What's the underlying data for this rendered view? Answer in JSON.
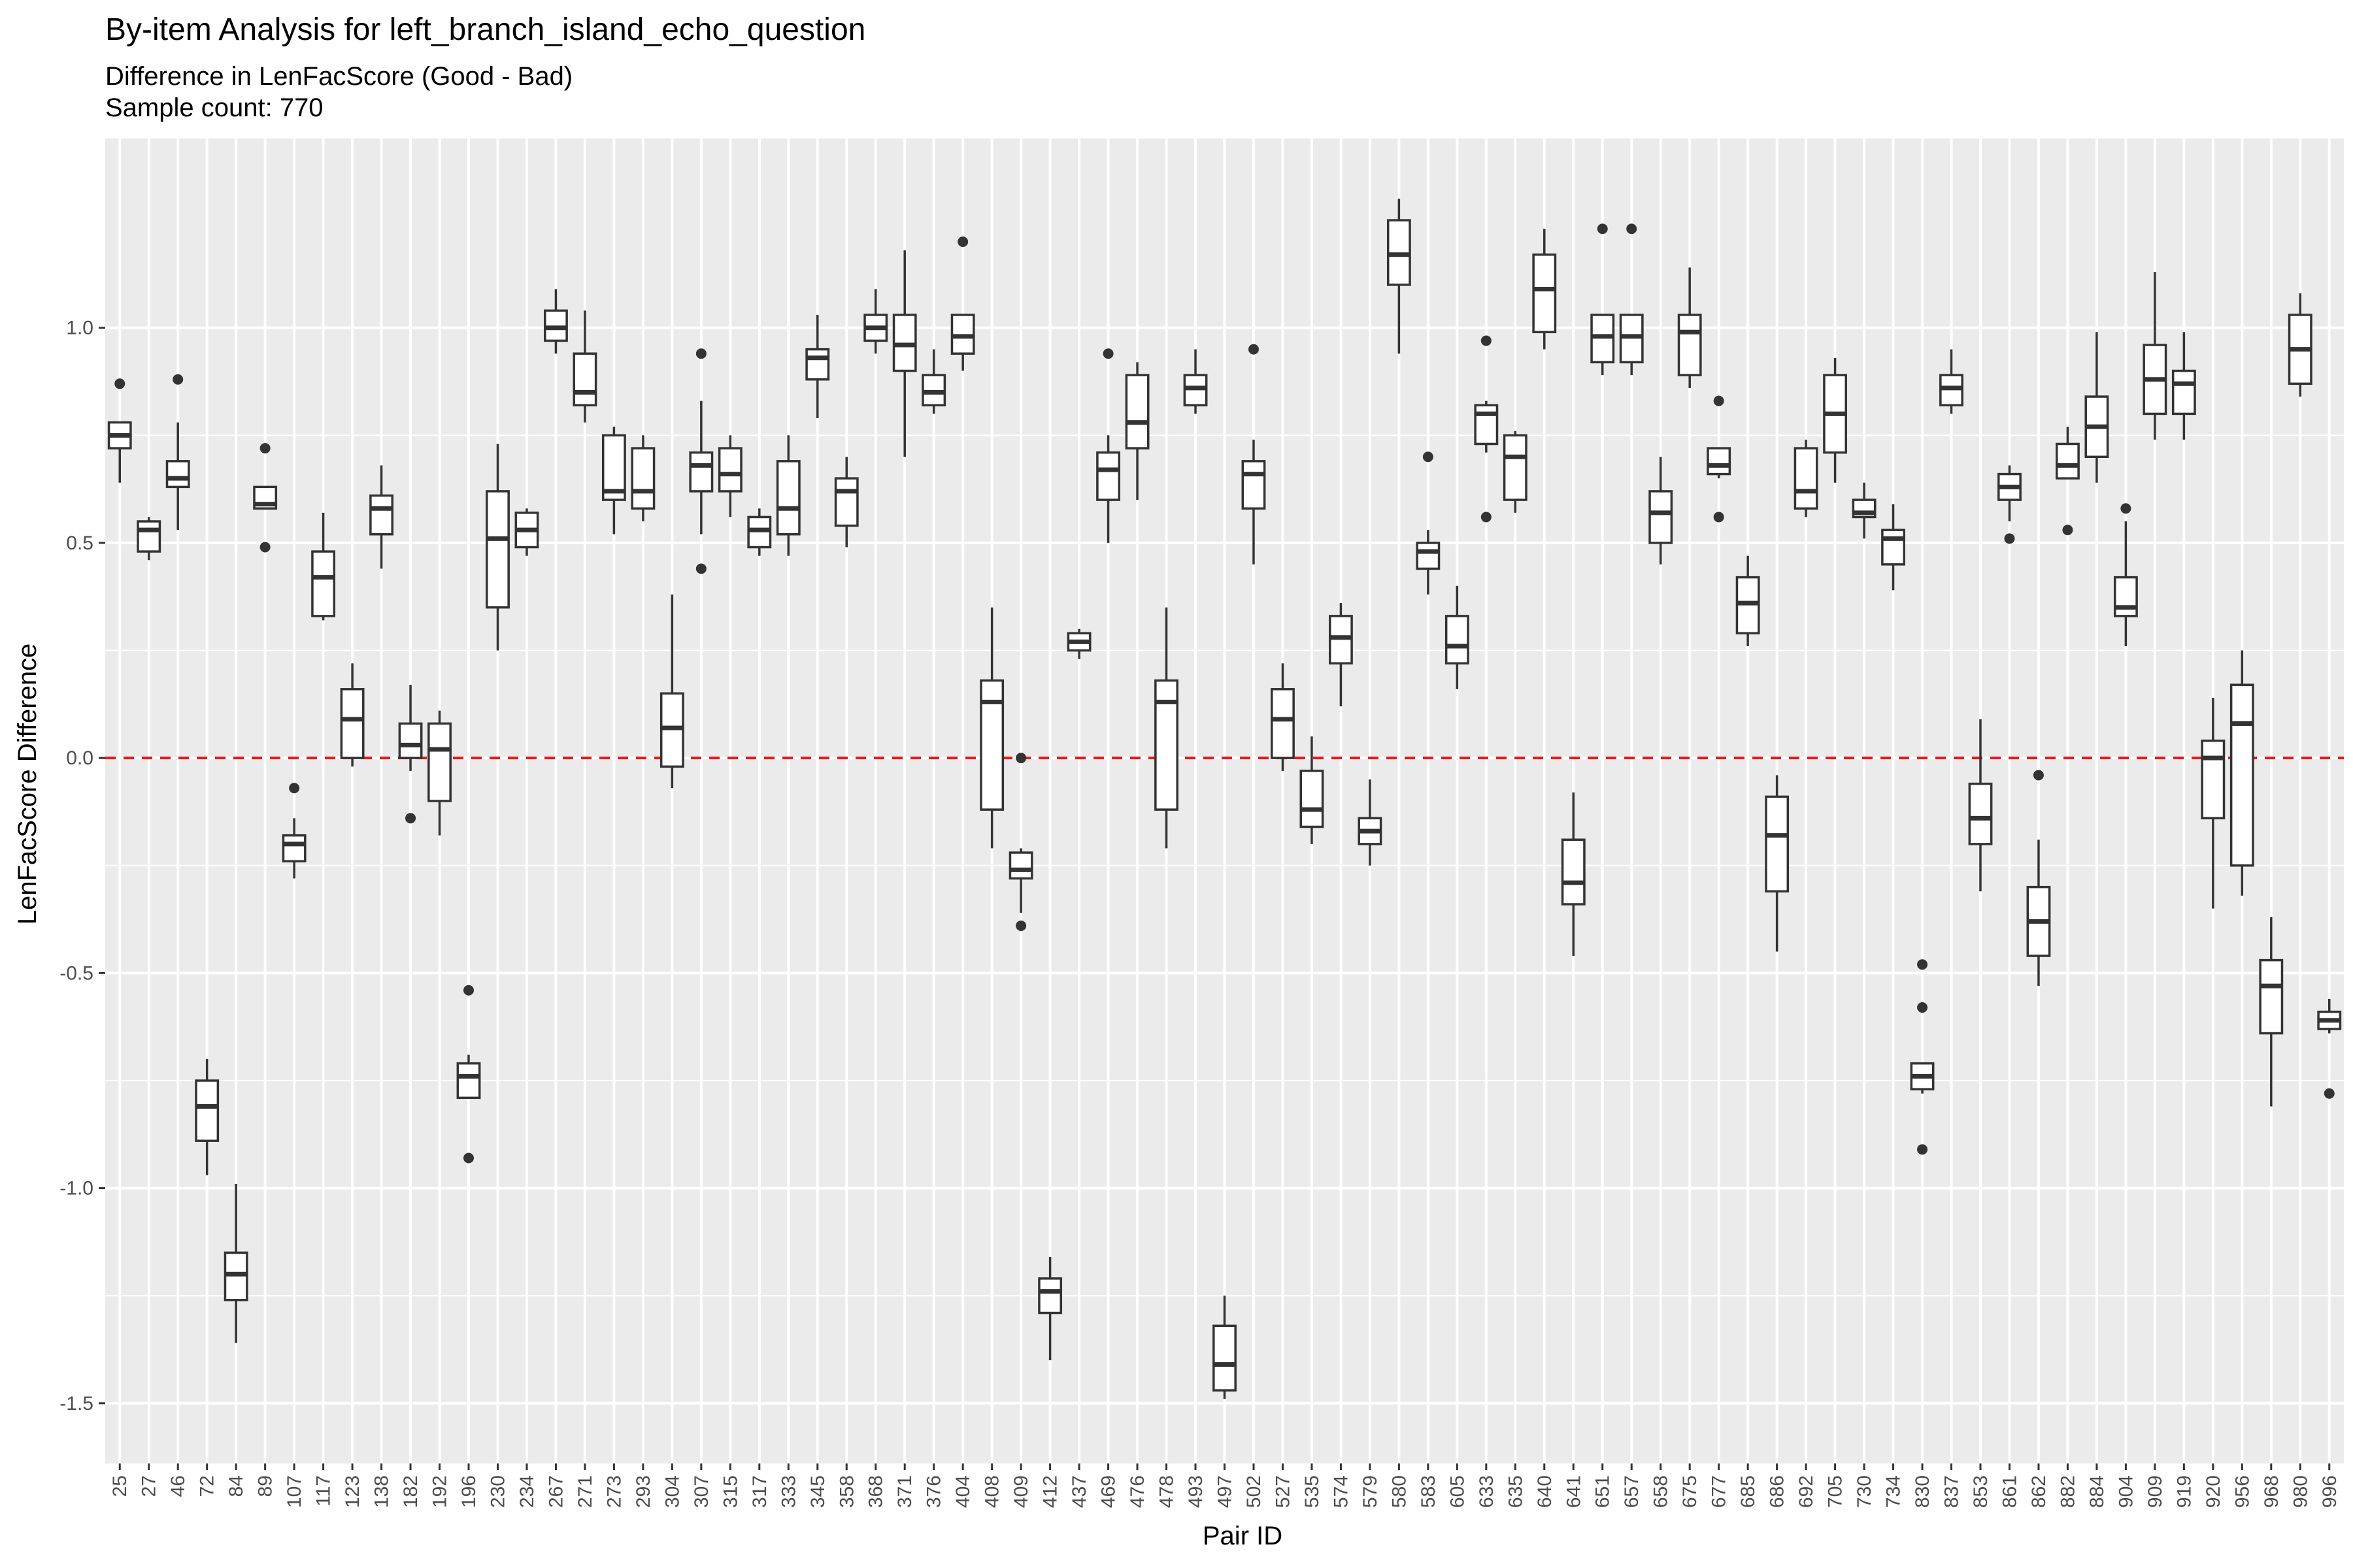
{
  "chart_data": {
    "type": "boxplot",
    "title": "By-item Analysis for left_branch_island_echo_question",
    "subtitle_lines": [
      "Difference in LenFacScore (Good - Bad)",
      "Sample count: 770"
    ],
    "xlabel": "Pair ID",
    "ylabel": "LenFacScore Difference",
    "ylim": [
      -1.64,
      1.44
    ],
    "yticks": [
      -1.5,
      -1.0,
      -0.5,
      0.0,
      0.5,
      1.0
    ],
    "ytick_labels": [
      "-1.5",
      "-1.0",
      "-0.5",
      "0.0",
      "0.5",
      "1.0"
    ],
    "reference_line": {
      "y": 0,
      "color": "#e41a1c",
      "style": "dashed"
    },
    "grid": true,
    "panel_color": "#ebebeb",
    "box_outline_color": "#333333",
    "categories": [
      "25",
      "27",
      "46",
      "72",
      "84",
      "89",
      "107",
      "117",
      "123",
      "138",
      "182",
      "192",
      "196",
      "230",
      "234",
      "267",
      "271",
      "273",
      "293",
      "304",
      "307",
      "315",
      "317",
      "333",
      "345",
      "358",
      "368",
      "371",
      "376",
      "404",
      "408",
      "409",
      "412",
      "437",
      "469",
      "476",
      "478",
      "493",
      "497",
      "502",
      "527",
      "535",
      "574",
      "579",
      "580",
      "583",
      "605",
      "633",
      "635",
      "640",
      "641",
      "651",
      "657",
      "658",
      "675",
      "677",
      "685",
      "686",
      "692",
      "705",
      "730",
      "734",
      "830",
      "837",
      "853",
      "861",
      "862",
      "882",
      "884",
      "904",
      "909",
      "919",
      "920",
      "956",
      "968",
      "980",
      "996"
    ],
    "boxes": [
      {
        "wl": 0.64,
        "q1": 0.72,
        "med": 0.75,
        "q3": 0.78,
        "wh": 0.78,
        "out": [
          0.87
        ]
      },
      {
        "wl": 0.46,
        "q1": 0.48,
        "med": 0.53,
        "q3": 0.55,
        "wh": 0.56,
        "out": []
      },
      {
        "wl": 0.53,
        "q1": 0.63,
        "med": 0.65,
        "q3": 0.69,
        "wh": 0.78,
        "out": [
          0.88
        ]
      },
      {
        "wl": -0.97,
        "q1": -0.89,
        "med": -0.81,
        "q3": -0.75,
        "wh": -0.7,
        "out": []
      },
      {
        "wl": -1.36,
        "q1": -1.26,
        "med": -1.2,
        "q3": -1.15,
        "wh": -0.99,
        "out": []
      },
      {
        "wl": 0.58,
        "q1": 0.58,
        "med": 0.59,
        "q3": 0.63,
        "wh": 0.63,
        "out": [
          0.72,
          0.49
        ]
      },
      {
        "wl": -0.28,
        "q1": -0.24,
        "med": -0.2,
        "q3": -0.18,
        "wh": -0.14,
        "out": [
          -0.07
        ]
      },
      {
        "wl": 0.32,
        "q1": 0.33,
        "med": 0.42,
        "q3": 0.48,
        "wh": 0.57,
        "out": []
      },
      {
        "wl": -0.02,
        "q1": 0.0,
        "med": 0.09,
        "q3": 0.16,
        "wh": 0.22,
        "out": []
      },
      {
        "wl": 0.44,
        "q1": 0.52,
        "med": 0.58,
        "q3": 0.61,
        "wh": 0.68,
        "out": []
      },
      {
        "wl": -0.03,
        "q1": 0.0,
        "med": 0.03,
        "q3": 0.08,
        "wh": 0.17,
        "out": [
          -0.14
        ]
      },
      {
        "wl": -0.18,
        "q1": -0.1,
        "med": 0.02,
        "q3": 0.08,
        "wh": 0.11,
        "out": []
      },
      {
        "wl": -0.79,
        "q1": -0.79,
        "med": -0.74,
        "q3": -0.71,
        "wh": -0.69,
        "out": [
          -0.54,
          -0.93
        ]
      },
      {
        "wl": 0.25,
        "q1": 0.35,
        "med": 0.51,
        "q3": 0.62,
        "wh": 0.73,
        "out": []
      },
      {
        "wl": 0.47,
        "q1": 0.49,
        "med": 0.53,
        "q3": 0.57,
        "wh": 0.58,
        "out": []
      },
      {
        "wl": 0.94,
        "q1": 0.97,
        "med": 1.0,
        "q3": 1.04,
        "wh": 1.09,
        "out": []
      },
      {
        "wl": 0.78,
        "q1": 0.82,
        "med": 0.85,
        "q3": 0.94,
        "wh": 1.04,
        "out": []
      },
      {
        "wl": 0.52,
        "q1": 0.6,
        "med": 0.62,
        "q3": 0.75,
        "wh": 0.77,
        "out": []
      },
      {
        "wl": 0.55,
        "q1": 0.58,
        "med": 0.62,
        "q3": 0.72,
        "wh": 0.75,
        "out": []
      },
      {
        "wl": -0.07,
        "q1": -0.02,
        "med": 0.07,
        "q3": 0.15,
        "wh": 0.38,
        "out": []
      },
      {
        "wl": 0.52,
        "q1": 0.62,
        "med": 0.68,
        "q3": 0.71,
        "wh": 0.83,
        "out": [
          0.94,
          0.44
        ]
      },
      {
        "wl": 0.56,
        "q1": 0.62,
        "med": 0.66,
        "q3": 0.72,
        "wh": 0.75,
        "out": []
      },
      {
        "wl": 0.47,
        "q1": 0.49,
        "med": 0.53,
        "q3": 0.56,
        "wh": 0.58,
        "out": []
      },
      {
        "wl": 0.47,
        "q1": 0.52,
        "med": 0.58,
        "q3": 0.69,
        "wh": 0.75,
        "out": []
      },
      {
        "wl": 0.79,
        "q1": 0.88,
        "med": 0.93,
        "q3": 0.95,
        "wh": 1.03,
        "out": []
      },
      {
        "wl": 0.49,
        "q1": 0.54,
        "med": 0.62,
        "q3": 0.65,
        "wh": 0.7,
        "out": []
      },
      {
        "wl": 0.94,
        "q1": 0.97,
        "med": 1.0,
        "q3": 1.03,
        "wh": 1.09,
        "out": []
      },
      {
        "wl": 0.7,
        "q1": 0.9,
        "med": 0.96,
        "q3": 1.03,
        "wh": 1.18,
        "out": []
      },
      {
        "wl": 0.8,
        "q1": 0.82,
        "med": 0.85,
        "q3": 0.89,
        "wh": 0.95,
        "out": []
      },
      {
        "wl": 0.9,
        "q1": 0.94,
        "med": 0.98,
        "q3": 1.03,
        "wh": 1.03,
        "out": [
          1.2
        ]
      },
      {
        "wl": -0.21,
        "q1": -0.12,
        "med": 0.13,
        "q3": 0.18,
        "wh": 0.35,
        "out": []
      },
      {
        "wl": -0.36,
        "q1": -0.28,
        "med": -0.26,
        "q3": -0.22,
        "wh": -0.21,
        "out": [
          0.0,
          -0.39
        ]
      },
      {
        "wl": -1.4,
        "q1": -1.29,
        "med": -1.24,
        "q3": -1.21,
        "wh": -1.16,
        "out": []
      },
      {
        "wl": 0.23,
        "q1": 0.25,
        "med": 0.27,
        "q3": 0.29,
        "wh": 0.3,
        "out": []
      },
      {
        "wl": 0.5,
        "q1": 0.6,
        "med": 0.67,
        "q3": 0.71,
        "wh": 0.75,
        "out": [
          0.94
        ]
      },
      {
        "wl": 0.6,
        "q1": 0.72,
        "med": 0.78,
        "q3": 0.89,
        "wh": 0.92,
        "out": []
      },
      {
        "wl": -0.21,
        "q1": -0.12,
        "med": 0.13,
        "q3": 0.18,
        "wh": 0.35,
        "out": []
      },
      {
        "wl": 0.8,
        "q1": 0.82,
        "med": 0.86,
        "q3": 0.89,
        "wh": 0.95,
        "out": []
      },
      {
        "wl": -1.49,
        "q1": -1.47,
        "med": -1.41,
        "q3": -1.32,
        "wh": -1.25,
        "out": []
      },
      {
        "wl": 0.45,
        "q1": 0.58,
        "med": 0.66,
        "q3": 0.69,
        "wh": 0.74,
        "out": [
          0.95
        ]
      },
      {
        "wl": -0.03,
        "q1": 0.0,
        "med": 0.09,
        "q3": 0.16,
        "wh": 0.22,
        "out": []
      },
      {
        "wl": -0.2,
        "q1": -0.16,
        "med": -0.12,
        "q3": -0.03,
        "wh": 0.05,
        "out": []
      },
      {
        "wl": 0.12,
        "q1": 0.22,
        "med": 0.28,
        "q3": 0.33,
        "wh": 0.36,
        "out": []
      },
      {
        "wl": -0.25,
        "q1": -0.2,
        "med": -0.17,
        "q3": -0.14,
        "wh": -0.05,
        "out": []
      },
      {
        "wl": 0.94,
        "q1": 1.1,
        "med": 1.17,
        "q3": 1.25,
        "wh": 1.3,
        "out": []
      },
      {
        "wl": 0.38,
        "q1": 0.44,
        "med": 0.48,
        "q3": 0.5,
        "wh": 0.53,
        "out": [
          0.7
        ]
      },
      {
        "wl": 0.16,
        "q1": 0.22,
        "med": 0.26,
        "q3": 0.33,
        "wh": 0.4,
        "out": []
      },
      {
        "wl": 0.71,
        "q1": 0.73,
        "med": 0.8,
        "q3": 0.82,
        "wh": 0.83,
        "out": [
          0.97,
          0.56
        ]
      },
      {
        "wl": 0.57,
        "q1": 0.6,
        "med": 0.7,
        "q3": 0.75,
        "wh": 0.76,
        "out": []
      },
      {
        "wl": 0.95,
        "q1": 0.99,
        "med": 1.09,
        "q3": 1.17,
        "wh": 1.23,
        "out": []
      },
      {
        "wl": -0.46,
        "q1": -0.34,
        "med": -0.29,
        "q3": -0.19,
        "wh": -0.08,
        "out": []
      },
      {
        "wl": 0.89,
        "q1": 0.92,
        "med": 0.98,
        "q3": 1.03,
        "wh": 1.03,
        "out": [
          1.23
        ]
      },
      {
        "wl": 0.89,
        "q1": 0.92,
        "med": 0.98,
        "q3": 1.03,
        "wh": 1.03,
        "out": [
          1.23
        ]
      },
      {
        "wl": 0.45,
        "q1": 0.5,
        "med": 0.57,
        "q3": 0.62,
        "wh": 0.7,
        "out": []
      },
      {
        "wl": 0.86,
        "q1": 0.89,
        "med": 0.99,
        "q3": 1.03,
        "wh": 1.14,
        "out": []
      },
      {
        "wl": 0.65,
        "q1": 0.66,
        "med": 0.68,
        "q3": 0.72,
        "wh": 0.72,
        "out": [
          0.83,
          0.56
        ]
      },
      {
        "wl": 0.26,
        "q1": 0.29,
        "med": 0.36,
        "q3": 0.42,
        "wh": 0.47,
        "out": []
      },
      {
        "wl": -0.45,
        "q1": -0.31,
        "med": -0.18,
        "q3": -0.09,
        "wh": -0.04,
        "out": []
      },
      {
        "wl": 0.56,
        "q1": 0.58,
        "med": 0.62,
        "q3": 0.72,
        "wh": 0.74,
        "out": []
      },
      {
        "wl": 0.64,
        "q1": 0.71,
        "med": 0.8,
        "q3": 0.89,
        "wh": 0.93,
        "out": []
      },
      {
        "wl": 0.51,
        "q1": 0.56,
        "med": 0.57,
        "q3": 0.6,
        "wh": 0.64,
        "out": []
      },
      {
        "wl": 0.39,
        "q1": 0.45,
        "med": 0.51,
        "q3": 0.53,
        "wh": 0.59,
        "out": []
      },
      {
        "wl": -0.78,
        "q1": -0.77,
        "med": -0.74,
        "q3": -0.71,
        "wh": -0.71,
        "out": [
          -0.48,
          -0.58,
          -0.91
        ]
      },
      {
        "wl": 0.8,
        "q1": 0.82,
        "med": 0.86,
        "q3": 0.89,
        "wh": 0.95,
        "out": []
      },
      {
        "wl": -0.31,
        "q1": -0.2,
        "med": -0.14,
        "q3": -0.06,
        "wh": 0.09,
        "out": []
      },
      {
        "wl": 0.55,
        "q1": 0.6,
        "med": 0.63,
        "q3": 0.66,
        "wh": 0.68,
        "out": [
          0.51
        ]
      },
      {
        "wl": -0.53,
        "q1": -0.46,
        "med": -0.38,
        "q3": -0.3,
        "wh": -0.19,
        "out": [
          -0.04
        ]
      },
      {
        "wl": 0.65,
        "q1": 0.65,
        "med": 0.68,
        "q3": 0.73,
        "wh": 0.77,
        "out": [
          0.53
        ]
      },
      {
        "wl": 0.64,
        "q1": 0.7,
        "med": 0.77,
        "q3": 0.84,
        "wh": 0.99,
        "out": []
      },
      {
        "wl": 0.26,
        "q1": 0.33,
        "med": 0.35,
        "q3": 0.42,
        "wh": 0.55,
        "out": [
          0.58
        ]
      },
      {
        "wl": 0.74,
        "q1": 0.8,
        "med": 0.88,
        "q3": 0.96,
        "wh": 1.13,
        "out": []
      },
      {
        "wl": 0.74,
        "q1": 0.8,
        "med": 0.87,
        "q3": 0.9,
        "wh": 0.99,
        "out": []
      },
      {
        "wl": -0.35,
        "q1": -0.14,
        "med": 0.0,
        "q3": 0.04,
        "wh": 0.14,
        "out": []
      },
      {
        "wl": -0.32,
        "q1": -0.25,
        "med": 0.08,
        "q3": 0.17,
        "wh": 0.25,
        "out": []
      },
      {
        "wl": -0.81,
        "q1": -0.64,
        "med": -0.53,
        "q3": -0.47,
        "wh": -0.37,
        "out": []
      },
      {
        "wl": 0.84,
        "q1": 0.87,
        "med": 0.95,
        "q3": 1.03,
        "wh": 1.08,
        "out": []
      },
      {
        "wl": -0.64,
        "q1": -0.63,
        "med": -0.61,
        "q3": -0.59,
        "wh": -0.56,
        "out": [
          -0.78
        ]
      }
    ]
  }
}
